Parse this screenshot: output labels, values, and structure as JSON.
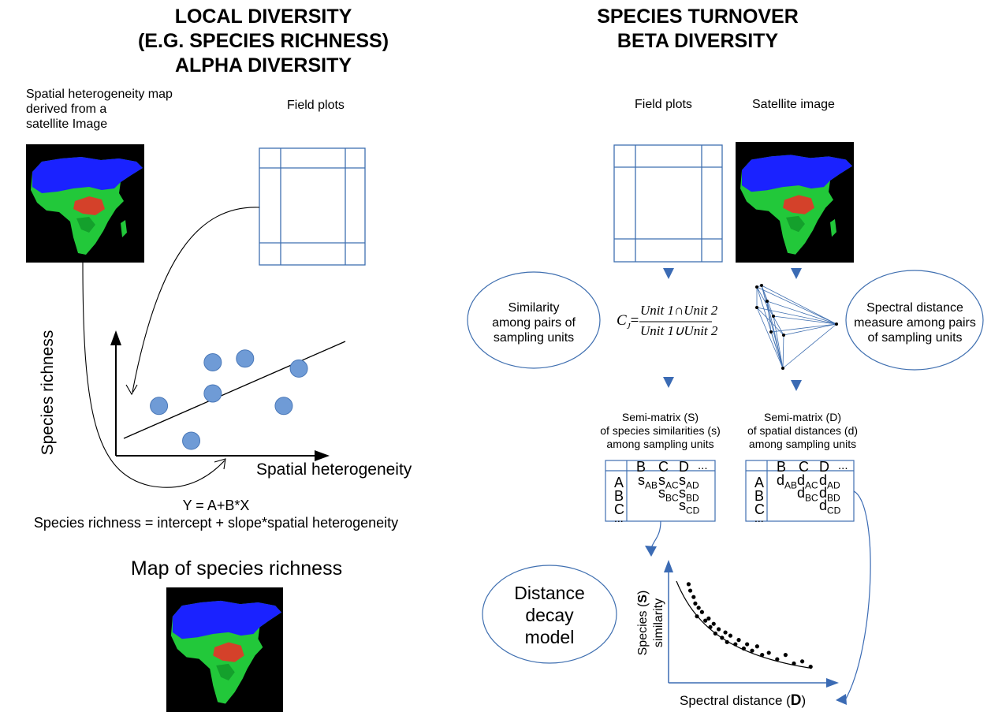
{
  "left": {
    "title_lines": [
      "LOCAL DIVERSITY",
      "(E.G. SPECIES RICHNESS)",
      "ALPHA DIVERSITY"
    ],
    "map_caption_lines": [
      "Spatial heterogeneity map",
      "derived from a",
      "satellite Image"
    ],
    "field_plots_label": "Field plots",
    "y_axis_label": "Species richness",
    "x_axis_label": "Spatial heterogeneity",
    "equation": "Y = A+B*X",
    "equation_words": "Species richness = intercept + slope*spatial heterogeneity",
    "output_map_title": "Map of species richness"
  },
  "right": {
    "title_lines": [
      "SPECIES TURNOVER",
      "BETA DIVERSITY"
    ],
    "field_plots_label": "Field plots",
    "satellite_label": "Satellite image",
    "similarity_ellipse_lines": [
      "Similarity",
      "among pairs of",
      "sampling units"
    ],
    "spectral_ellipse_lines": [
      "Spectral distance",
      "measure among pairs",
      "of sampling units"
    ],
    "formula": {
      "lhs": "C",
      "lhs_sub": "J",
      "equals": "=",
      "numerator": "Unit 1∩Unit 2",
      "denominator": "Unit 1∪Unit 2"
    },
    "semi_s_lines": [
      "Semi-matrix (S)",
      "of species similarities (s)",
      "among sampling units"
    ],
    "semi_d_lines": [
      "Semi-matrix (D)",
      "of spatial distances (d)",
      "among sampling units"
    ],
    "matrix_s": {
      "cols": [
        "B",
        "C",
        "D",
        "..."
      ],
      "rows": [
        "A",
        "B",
        "C",
        "..."
      ],
      "cell_letter": "s",
      "subs": [
        "AB",
        "AC",
        "BC",
        "AD",
        "BD",
        "CD"
      ]
    },
    "matrix_d": {
      "cols": [
        "B",
        "C",
        "D",
        "..."
      ],
      "rows": [
        "A",
        "B",
        "C",
        "..."
      ],
      "cell_letter": "d",
      "subs": [
        "AB",
        "AC",
        "BC",
        "AD",
        "BD",
        "CD"
      ]
    },
    "distance_decay_lines": [
      "Distance",
      "decay",
      "model"
    ],
    "decay_y_label_prefix": "Species",
    "decay_y_label_line2": "similarity",
    "decay_y_symbol": "S",
    "decay_x_label": "Spectral distance",
    "decay_x_symbol": "D"
  },
  "colors": {
    "plot_blue": "#3f6fb0",
    "dot_fill": "#6f9bd6",
    "arrow_blue": "#3b6bb4",
    "map_bg": "#000000",
    "map_blue": "#1a22ff",
    "map_green": "#22c83a",
    "map_red": "#d4412a"
  },
  "chart_data": [
    {
      "type": "scatter",
      "title": "",
      "xlabel": "Spatial heterogeneity",
      "ylabel": "Species richness",
      "points": [
        [
          0.2,
          0.4
        ],
        [
          0.45,
          0.75
        ],
        [
          0.45,
          0.5
        ],
        [
          0.35,
          0.12
        ],
        [
          0.78,
          0.4
        ],
        [
          0.6,
          0.78
        ],
        [
          0.85,
          0.7
        ]
      ],
      "trend_line": "linear increasing"
    },
    {
      "type": "scatter",
      "title": "",
      "xlabel": "Spectral distance (D)",
      "ylabel": "Species similarity (S)",
      "points": [
        [
          0.12,
          0.92
        ],
        [
          0.13,
          0.86
        ],
        [
          0.15,
          0.8
        ],
        [
          0.16,
          0.74
        ],
        [
          0.18,
          0.7
        ],
        [
          0.17,
          0.62
        ],
        [
          0.2,
          0.66
        ],
        [
          0.22,
          0.58
        ],
        [
          0.24,
          0.6
        ],
        [
          0.25,
          0.52
        ],
        [
          0.27,
          0.55
        ],
        [
          0.28,
          0.46
        ],
        [
          0.3,
          0.5
        ],
        [
          0.32,
          0.42
        ],
        [
          0.34,
          0.47
        ],
        [
          0.35,
          0.38
        ],
        [
          0.37,
          0.44
        ],
        [
          0.4,
          0.36
        ],
        [
          0.42,
          0.4
        ],
        [
          0.45,
          0.32
        ],
        [
          0.47,
          0.36
        ],
        [
          0.5,
          0.3
        ],
        [
          0.53,
          0.34
        ],
        [
          0.56,
          0.26
        ],
        [
          0.6,
          0.28
        ],
        [
          0.65,
          0.22
        ],
        [
          0.7,
          0.26
        ],
        [
          0.75,
          0.18
        ],
        [
          0.8,
          0.2
        ],
        [
          0.85,
          0.15
        ]
      ],
      "trend_line": "exponential decay"
    }
  ]
}
